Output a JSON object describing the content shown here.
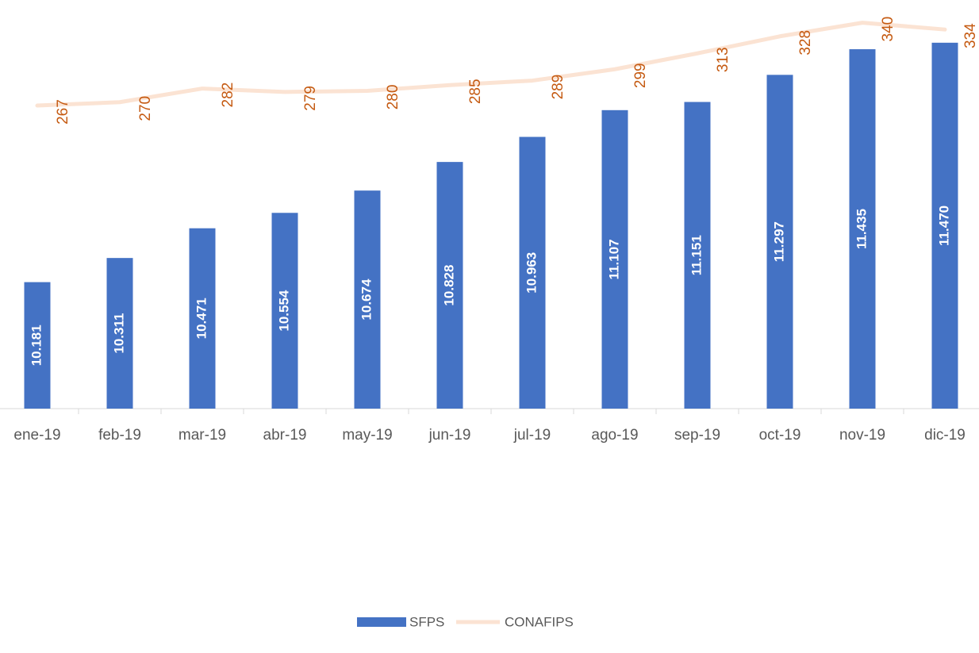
{
  "chart_data": {
    "type": "bar",
    "categories": [
      "ene-19",
      "feb-19",
      "mar-19",
      "abr-19",
      "may-19",
      "jun-19",
      "jul-19",
      "ago-19",
      "sep-19",
      "oct-19",
      "nov-19",
      "dic-19"
    ],
    "series": [
      {
        "name": "SFPS",
        "type": "bar",
        "color": "#4472c4",
        "label_color": "#ffffff",
        "values": [
          10181,
          10311,
          10471,
          10554,
          10674,
          10828,
          10963,
          11107,
          11151,
          11297,
          11435,
          11470
        ],
        "value_labels": [
          "10.181",
          "10.311",
          "10.471",
          "10.554",
          "10.674",
          "10.828",
          "10.963",
          "11.107",
          "11.151",
          "11.297",
          "11.435",
          "11.470"
        ]
      },
      {
        "name": "CONAFIPS",
        "type": "line",
        "axis": "y2",
        "color": "#fbe3d3",
        "label_color": "#c55a11",
        "values": [
          267,
          270,
          282,
          279,
          280,
          285,
          289,
          299,
          313,
          328,
          340,
          334
        ]
      }
    ],
    "ylim": [
      9500,
      11700
    ],
    "y2lim": [
      0,
      360
    ],
    "legend": "bottom"
  }
}
